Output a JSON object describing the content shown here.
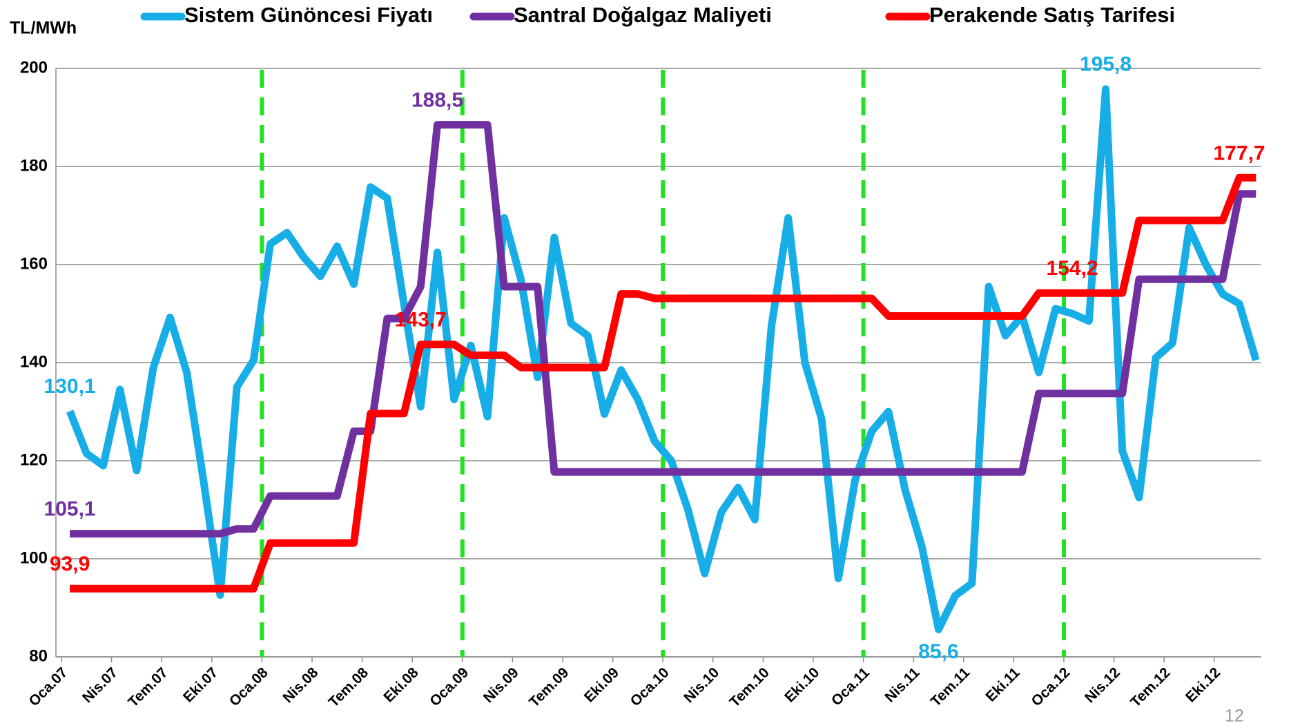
{
  "chart_data": {
    "type": "line",
    "ylabel": "TL/MWh",
    "page_number": "12",
    "categories": [
      "Oca.07",
      null,
      null,
      "Nis.07",
      null,
      null,
      "Tem.07",
      null,
      null,
      "Eki.07",
      null,
      null,
      "Oca.08",
      null,
      null,
      "Nis.08",
      null,
      null,
      "Tem.08",
      null,
      null,
      "Eki.08",
      null,
      null,
      "Oca.09",
      null,
      null,
      "Nis.09",
      null,
      null,
      "Tem.09",
      null,
      null,
      "Eki.09",
      null,
      null,
      "Oca.10",
      null,
      null,
      "Nis.10",
      null,
      null,
      "Tem.10",
      null,
      null,
      "Eki.10",
      null,
      null,
      "Oca.11",
      null,
      null,
      "Nis.11",
      null,
      null,
      "Tem.11",
      null,
      null,
      "Eki.11",
      null,
      null,
      "Oca.12",
      null,
      null,
      "Nis.12",
      null,
      null,
      "Tem.12",
      null,
      null,
      "Eki.12",
      null,
      null
    ],
    "series": [
      {
        "name": "Sistem Günöncesi Fiyatı",
        "color": "#17ade6",
        "values": [
          130.1,
          121.5,
          119,
          134.5,
          118,
          139,
          149.2,
          138,
          116,
          92.6,
          135,
          140.5,
          164.2,
          166.5,
          161.5,
          157.6,
          163.7,
          156,
          175.8,
          173.5,
          152,
          131,
          162.5,
          132.5,
          143.5,
          129,
          169.5,
          157,
          137,
          165.5,
          148,
          145.5,
          129.5,
          138.5,
          132.5,
          124,
          120,
          110,
          97,
          109.5,
          114.5,
          108,
          147.5,
          169.5,
          140,
          128.5,
          96,
          116,
          126,
          130,
          114,
          102.5,
          85.6,
          92.5,
          95,
          155.5,
          145.5,
          149.5,
          138,
          151,
          150,
          148.5,
          195.8,
          122,
          112.5,
          141,
          144,
          167.5,
          160,
          154,
          152,
          140.5
        ],
        "value_labels": [
          "130,1",
          null,
          null,
          null,
          null,
          null,
          null,
          null,
          null,
          null,
          null,
          null,
          null,
          null,
          null,
          null,
          null,
          null,
          null,
          null,
          null,
          null,
          null,
          null,
          null,
          null,
          null,
          null,
          null,
          null,
          null,
          null,
          null,
          null,
          null,
          null,
          null,
          null,
          null,
          null,
          null,
          null,
          null,
          null,
          null,
          null,
          null,
          null,
          null,
          null,
          null,
          null,
          "85,6",
          null,
          null,
          null,
          null,
          null,
          null,
          null,
          null,
          null,
          "195,8",
          null,
          null,
          null,
          null,
          null,
          null,
          null,
          null,
          null
        ]
      },
      {
        "name": "Santral Doğalgaz Maliyeti",
        "color": "#7030a0",
        "values": [
          105.1,
          105.1,
          105.1,
          105.1,
          105.1,
          105.1,
          105.1,
          105.1,
          105.1,
          105.1,
          106.1,
          106.1,
          112.8,
          112.8,
          112.8,
          112.8,
          112.8,
          126,
          126,
          149,
          149,
          155.5,
          188.5,
          188.5,
          188.5,
          188.5,
          155.5,
          155.5,
          155.5,
          117.7,
          117.7,
          117.7,
          117.7,
          117.7,
          117.7,
          117.7,
          117.7,
          117.7,
          117.7,
          117.7,
          117.7,
          117.7,
          117.7,
          117.7,
          117.7,
          117.7,
          117.7,
          117.7,
          117.7,
          117.7,
          117.7,
          117.7,
          117.7,
          117.7,
          117.7,
          117.7,
          117.7,
          117.7,
          133.7,
          133.7,
          133.7,
          133.7,
          133.7,
          133.7,
          157,
          157,
          157,
          157,
          157,
          157,
          174.4,
          174.4
        ],
        "value_labels": [
          "105,1",
          null,
          null,
          null,
          null,
          null,
          null,
          null,
          null,
          null,
          null,
          null,
          null,
          null,
          null,
          null,
          null,
          null,
          null,
          null,
          null,
          null,
          "188,5",
          null,
          null,
          null,
          null,
          null,
          null,
          null,
          null,
          null,
          null,
          null,
          null,
          null,
          null,
          null,
          null,
          null,
          null,
          null,
          null,
          null,
          null,
          null,
          null,
          null,
          null,
          null,
          null,
          null,
          null,
          null,
          null,
          null,
          null,
          null,
          null,
          null,
          null,
          null,
          null,
          null,
          null,
          null,
          null,
          null,
          null,
          null,
          null,
          null
        ]
      },
      {
        "name": "Perakende Satış Tarifesi",
        "color": "#ff0000",
        "values": [
          93.9,
          93.9,
          93.9,
          93.9,
          93.9,
          93.9,
          93.9,
          93.9,
          93.9,
          93.9,
          93.9,
          93.9,
          103.2,
          103.2,
          103.2,
          103.2,
          103.2,
          103.2,
          129.6,
          129.6,
          129.6,
          143.7,
          143.7,
          143.7,
          141.5,
          141.5,
          141.5,
          139,
          139,
          139,
          139,
          139,
          139,
          154,
          154,
          153.1,
          153.1,
          153.1,
          153.1,
          153.1,
          153.1,
          153.1,
          153.1,
          153.1,
          153.1,
          153.1,
          153.1,
          153.1,
          153.1,
          149.5,
          149.5,
          149.5,
          149.5,
          149.5,
          149.5,
          149.5,
          149.5,
          149.5,
          154.2,
          154.2,
          154.2,
          154.2,
          154.2,
          154.2,
          169,
          169,
          169,
          169,
          169,
          169,
          177.7,
          177.7
        ],
        "value_labels": [
          "93,9",
          null,
          null,
          null,
          null,
          null,
          null,
          null,
          null,
          null,
          null,
          null,
          null,
          null,
          null,
          null,
          null,
          null,
          null,
          null,
          null,
          "143,7",
          null,
          null,
          null,
          null,
          null,
          null,
          null,
          null,
          null,
          null,
          null,
          null,
          null,
          null,
          null,
          null,
          null,
          null,
          null,
          null,
          null,
          null,
          null,
          null,
          null,
          null,
          null,
          null,
          null,
          null,
          null,
          null,
          null,
          null,
          null,
          null,
          null,
          null,
          "154,2",
          null,
          null,
          null,
          null,
          null,
          null,
          null,
          null,
          null,
          "177,7",
          null
        ]
      }
    ],
    "ylim": [
      80,
      200
    ],
    "yticks": [
      80,
      100,
      120,
      140,
      160,
      180,
      200
    ],
    "grid": true,
    "legend": "top"
  }
}
